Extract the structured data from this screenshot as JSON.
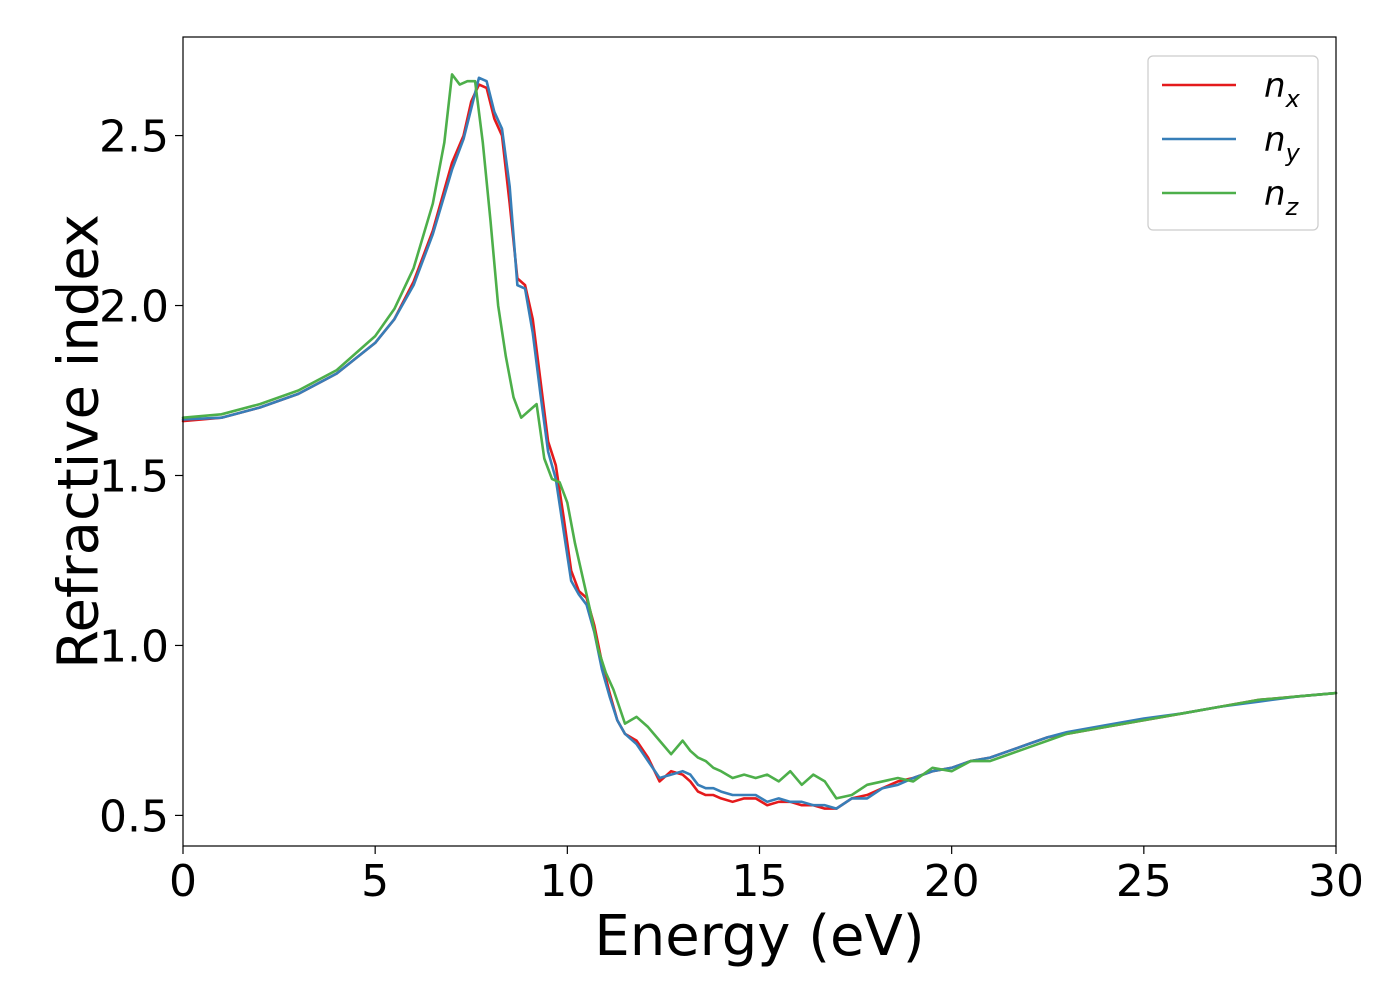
{
  "chart_data": {
    "type": "line",
    "title": "",
    "xlabel": "Energy (eV)",
    "ylabel": "Refractive index",
    "xlim": [
      0,
      30
    ],
    "ylim": [
      0.41,
      2.79
    ],
    "xticks": [
      0,
      5,
      10,
      15,
      20,
      25,
      30
    ],
    "xtick_labels": [
      "0",
      "5",
      "10",
      "15",
      "20",
      "25",
      "30"
    ],
    "yticks": [
      0.5,
      1.0,
      1.5,
      2.0,
      2.5
    ],
    "ytick_labels": [
      "0.5",
      "1.0",
      "1.5",
      "2.0",
      "2.5"
    ],
    "grid": false,
    "legend_position": "top-right",
    "series": [
      {
        "name": "n_x",
        "label_base": "n",
        "label_sub": "x",
        "color": "#e41a1c",
        "x": [
          0,
          1,
          2,
          3,
          4,
          5,
          5.5,
          6,
          6.5,
          7,
          7.3,
          7.5,
          7.7,
          7.9,
          8.1,
          8.3,
          8.5,
          8.7,
          8.9,
          9.1,
          9.3,
          9.5,
          9.7,
          9.9,
          10.1,
          10.3,
          10.5,
          10.7,
          10.9,
          11.1,
          11.3,
          11.5,
          11.8,
          12.1,
          12.4,
          12.7,
          13.0,
          13.2,
          13.4,
          13.6,
          13.8,
          14.0,
          14.3,
          14.6,
          14.9,
          15.2,
          15.5,
          15.8,
          16.1,
          16.4,
          16.7,
          17.0,
          17.4,
          17.8,
          18.2,
          18.6,
          19.0,
          19.5,
          20.0,
          20.5,
          21,
          21.5,
          22,
          22.5,
          23,
          24,
          25,
          26,
          27,
          28,
          29,
          30
        ],
        "y": [
          1.66,
          1.67,
          1.7,
          1.74,
          1.8,
          1.89,
          1.96,
          2.07,
          2.22,
          2.42,
          2.5,
          2.6,
          2.65,
          2.64,
          2.55,
          2.5,
          2.3,
          2.08,
          2.06,
          1.96,
          1.78,
          1.6,
          1.53,
          1.38,
          1.22,
          1.16,
          1.14,
          1.06,
          0.95,
          0.86,
          0.78,
          0.74,
          0.72,
          0.67,
          0.6,
          0.63,
          0.62,
          0.6,
          0.57,
          0.56,
          0.56,
          0.55,
          0.54,
          0.55,
          0.55,
          0.53,
          0.54,
          0.54,
          0.53,
          0.53,
          0.52,
          0.52,
          0.55,
          0.56,
          0.58,
          0.6,
          0.61,
          0.63,
          0.64,
          0.66,
          0.67,
          0.69,
          0.71,
          0.73,
          0.74,
          0.76,
          0.78,
          0.8,
          0.82,
          0.84,
          0.85,
          0.86
        ]
      },
      {
        "name": "n_y",
        "label_base": "n",
        "label_sub": "y",
        "color": "#377eb8",
        "x": [
          0,
          1,
          2,
          3,
          4,
          5,
          5.5,
          6,
          6.5,
          7,
          7.3,
          7.5,
          7.7,
          7.9,
          8.1,
          8.3,
          8.5,
          8.7,
          8.9,
          9.1,
          9.3,
          9.5,
          9.7,
          9.9,
          10.1,
          10.3,
          10.5,
          10.7,
          10.9,
          11.1,
          11.3,
          11.5,
          11.8,
          12.1,
          12.4,
          12.7,
          13.0,
          13.2,
          13.4,
          13.6,
          13.8,
          14.0,
          14.3,
          14.6,
          14.9,
          15.2,
          15.5,
          15.8,
          16.1,
          16.4,
          16.7,
          17.0,
          17.4,
          17.8,
          18.2,
          18.6,
          19.0,
          19.5,
          20.0,
          20.5,
          21,
          21.5,
          22,
          22.5,
          23,
          24,
          25,
          26,
          27,
          28,
          29,
          30
        ],
        "y": [
          1.665,
          1.67,
          1.7,
          1.74,
          1.8,
          1.89,
          1.96,
          2.06,
          2.21,
          2.4,
          2.49,
          2.58,
          2.67,
          2.66,
          2.57,
          2.52,
          2.35,
          2.06,
          2.05,
          1.92,
          1.74,
          1.57,
          1.49,
          1.34,
          1.19,
          1.15,
          1.12,
          1.04,
          0.93,
          0.85,
          0.78,
          0.74,
          0.71,
          0.66,
          0.61,
          0.62,
          0.63,
          0.62,
          0.59,
          0.58,
          0.58,
          0.57,
          0.56,
          0.56,
          0.56,
          0.54,
          0.55,
          0.54,
          0.54,
          0.53,
          0.53,
          0.52,
          0.55,
          0.55,
          0.58,
          0.59,
          0.61,
          0.63,
          0.64,
          0.66,
          0.67,
          0.69,
          0.71,
          0.73,
          0.745,
          0.765,
          0.785,
          0.8,
          0.82,
          0.835,
          0.85,
          0.86
        ]
      },
      {
        "name": "n_z",
        "label_base": "n",
        "label_sub": "z",
        "color": "#4daf4a",
        "x": [
          0,
          1,
          2,
          3,
          4,
          5,
          5.5,
          6,
          6.5,
          6.8,
          7.0,
          7.2,
          7.4,
          7.6,
          7.8,
          8.0,
          8.2,
          8.4,
          8.6,
          8.8,
          9.0,
          9.2,
          9.4,
          9.6,
          9.8,
          10.0,
          10.2,
          10.4,
          10.6,
          10.8,
          11.0,
          11.2,
          11.5,
          11.8,
          12.1,
          12.4,
          12.7,
          13.0,
          13.2,
          13.4,
          13.6,
          13.8,
          14.0,
          14.3,
          14.6,
          14.9,
          15.2,
          15.5,
          15.8,
          16.1,
          16.4,
          16.7,
          17.0,
          17.4,
          17.8,
          18.2,
          18.6,
          19.0,
          19.5,
          20.0,
          20.5,
          21,
          21.5,
          22,
          22.5,
          23,
          24,
          25,
          26,
          27,
          28,
          29,
          30
        ],
        "y": [
          1.67,
          1.68,
          1.71,
          1.75,
          1.81,
          1.91,
          1.99,
          2.11,
          2.3,
          2.48,
          2.68,
          2.65,
          2.66,
          2.66,
          2.48,
          2.25,
          2.0,
          1.85,
          1.73,
          1.67,
          1.69,
          1.71,
          1.55,
          1.49,
          1.48,
          1.42,
          1.3,
          1.2,
          1.1,
          0.99,
          0.92,
          0.87,
          0.77,
          0.79,
          0.76,
          0.72,
          0.68,
          0.72,
          0.69,
          0.67,
          0.66,
          0.64,
          0.63,
          0.61,
          0.62,
          0.61,
          0.62,
          0.6,
          0.63,
          0.59,
          0.62,
          0.6,
          0.55,
          0.56,
          0.59,
          0.6,
          0.61,
          0.6,
          0.64,
          0.63,
          0.66,
          0.66,
          0.68,
          0.7,
          0.72,
          0.74,
          0.76,
          0.78,
          0.8,
          0.82,
          0.84,
          0.85,
          0.86
        ]
      }
    ]
  }
}
